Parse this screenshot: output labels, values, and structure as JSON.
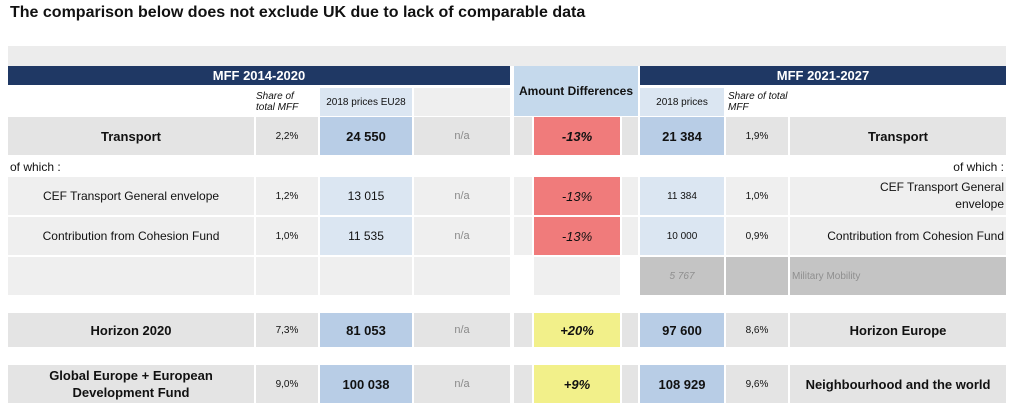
{
  "title": "The comparison below does not exclude UK due to lack of comparable data",
  "headers": {
    "mff_left": "MFF 2014-2020",
    "amount_diff": "Amount Differences",
    "mff_right": "MFF 2021-2027",
    "left_share": "Share of total MFF",
    "left_prices": "2018 prices EU28",
    "right_prices": "2018 prices",
    "right_share": "Share of total MFF"
  },
  "rows": {
    "transport": {
      "left_label": "Transport",
      "left_share": "2,2%",
      "left_amount": "24 550",
      "na": "n/a",
      "diff": "-13%",
      "right_amount": "21 384",
      "right_share": "1,9%",
      "right_label": "Transport"
    },
    "of_which_left": "of which :",
    "of_which_right": "of which :",
    "cef": {
      "left_label": "CEF Transport  General envelope",
      "left_share": "1,2%",
      "left_amount": "13 015",
      "na": "n/a",
      "diff": "-13%",
      "right_amount": "11 384",
      "right_share": "1,0%",
      "right_label_1": "CEF Transport  General",
      "right_label_2": "envelope"
    },
    "cohesion": {
      "left_label": "Contribution from Cohesion Fund",
      "left_share": "1,0%",
      "left_amount": "11 535",
      "na": "n/a",
      "diff": "-13%",
      "right_amount": "10 000",
      "right_share": "0,9%",
      "right_label": "Contribution from Cohesion Fund"
    },
    "military": {
      "right_amount": "5 767",
      "right_label": "Military Mobility"
    },
    "horizon": {
      "left_label": "Horizon 2020",
      "left_share": "7,3%",
      "left_amount": "81 053",
      "na": "n/a",
      "diff": "+20%",
      "right_amount": "97 600",
      "right_share": "8,6%",
      "right_label": "Horizon Europe"
    },
    "global": {
      "left_label_1": "Global Europe + European",
      "left_label_2": "Development Fund",
      "left_share": "9,0%",
      "left_amount": "100 038",
      "na": "n/a",
      "diff": "+9%",
      "right_amount": "108 929",
      "right_share": "9,6%",
      "right_label": "Neighbourhood and the world"
    }
  },
  "colors": {
    "navy": "#1f3864",
    "header_blue": "#c5d9ec",
    "red": "#f07b7b",
    "yellow": "#f2f08a"
  }
}
